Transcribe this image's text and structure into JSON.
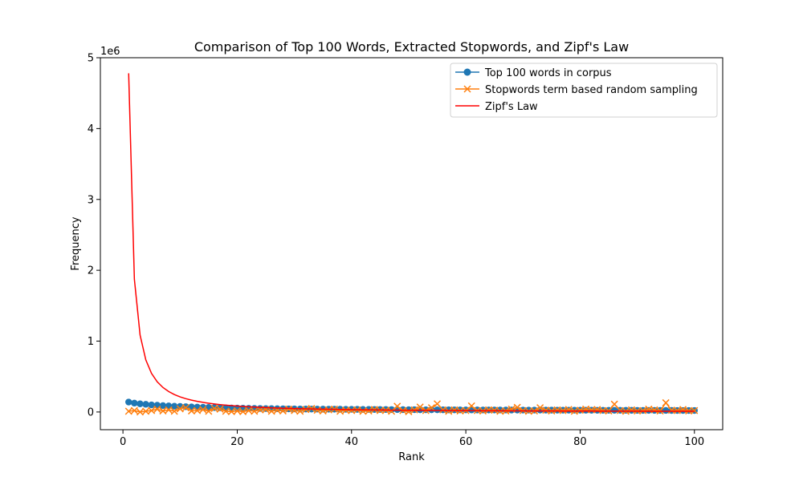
{
  "chart_data": {
    "type": "line",
    "title": "Comparison of Top 100 Words, Extracted Stopwords, and Zipf's Law",
    "xlabel": "Rank",
    "ylabel": "Frequency",
    "y_offset_label": "1e6",
    "xlim": [
      -3.95,
      104.95
    ],
    "ylim": [
      -250000,
      5000000
    ],
    "x_ticks": [
      0,
      20,
      40,
      60,
      80,
      100
    ],
    "x_tick_labels": [
      "0",
      "20",
      "40",
      "60",
      "80",
      "100"
    ],
    "y_ticks": [
      0,
      1000000,
      2000000,
      3000000,
      4000000,
      5000000
    ],
    "y_tick_labels": [
      "0",
      "1",
      "2",
      "3",
      "4",
      "5"
    ],
    "grid": false,
    "legend_position": "upper right",
    "series": [
      {
        "name": "Top 100 words in corpus",
        "color": "#1f77b4",
        "marker": "circle",
        "x": [
          1,
          2,
          3,
          4,
          5,
          6,
          7,
          8,
          9,
          10,
          11,
          12,
          13,
          14,
          15,
          16,
          17,
          18,
          19,
          20,
          21,
          22,
          23,
          24,
          25,
          26,
          27,
          28,
          29,
          30,
          31,
          32,
          33,
          34,
          35,
          36,
          37,
          38,
          39,
          40,
          41,
          42,
          43,
          44,
          45,
          46,
          47,
          48,
          49,
          50,
          51,
          52,
          53,
          54,
          55,
          56,
          57,
          58,
          59,
          60,
          61,
          62,
          63,
          64,
          65,
          66,
          67,
          68,
          69,
          70,
          71,
          72,
          73,
          74,
          75,
          76,
          77,
          78,
          79,
          80,
          81,
          82,
          83,
          84,
          85,
          86,
          87,
          88,
          89,
          90,
          91,
          92,
          93,
          94,
          95,
          96,
          97,
          98,
          99,
          100
        ],
        "values": [
          140000,
          125000,
          115000,
          108000,
          100000,
          95000,
          90000,
          86000,
          82000,
          78000,
          75000,
          72000,
          69000,
          66000,
          64000,
          62000,
          60000,
          58000,
          56000,
          55000,
          53000,
          52000,
          50000,
          49000,
          48000,
          47000,
          46000,
          45000,
          44000,
          43000,
          42000,
          41500,
          41000,
          40500,
          40000,
          39500,
          39000,
          38500,
          38000,
          37500,
          37000,
          36500,
          36000,
          35500,
          35000,
          34500,
          34000,
          33500,
          33000,
          32500,
          32000,
          31500,
          31000,
          30800,
          30500,
          30200,
          30000,
          29700,
          29400,
          29100,
          28800,
          28500,
          28200,
          28000,
          27800,
          27600,
          27400,
          27200,
          27000,
          26800,
          26600,
          26400,
          26200,
          26000,
          25800,
          25600,
          25400,
          25200,
          25000,
          24800,
          24600,
          24400,
          24200,
          24000,
          23800,
          23600,
          23400,
          23200,
          23000,
          22800,
          22600,
          22400,
          22200,
          22000,
          21800,
          21600,
          21400,
          21200,
          21000,
          20800
        ]
      },
      {
        "name": "Stopwords term based random sampling",
        "color": "#ff7f0e",
        "marker": "x",
        "x": [
          1,
          2,
          3,
          4,
          5,
          6,
          7,
          8,
          9,
          10,
          11,
          12,
          13,
          14,
          15,
          16,
          17,
          18,
          19,
          20,
          21,
          22,
          23,
          24,
          25,
          26,
          27,
          28,
          29,
          30,
          31,
          32,
          33,
          34,
          35,
          36,
          37,
          38,
          39,
          40,
          41,
          42,
          43,
          44,
          45,
          46,
          47,
          48,
          49,
          50,
          51,
          52,
          53,
          54,
          55,
          56,
          57,
          58,
          59,
          60,
          61,
          62,
          63,
          64,
          65,
          66,
          67,
          68,
          69,
          70,
          71,
          72,
          73,
          74,
          75,
          76,
          77,
          78,
          79,
          80,
          81,
          82,
          83,
          84,
          85,
          86,
          87,
          88,
          89,
          90,
          91,
          92,
          93,
          94,
          95,
          96,
          97,
          98,
          99,
          100
        ],
        "values": [
          10000,
          20000,
          0,
          10000,
          20000,
          40000,
          15000,
          30000,
          10000,
          45000,
          60000,
          15000,
          20000,
          35000,
          10000,
          50000,
          40000,
          10000,
          5000,
          15000,
          5000,
          20000,
          10000,
          30000,
          35000,
          10000,
          25000,
          15000,
          40000,
          20000,
          10000,
          35000,
          50000,
          25000,
          15000,
          30000,
          40000,
          10000,
          25000,
          20000,
          30000,
          10000,
          15000,
          35000,
          20000,
          25000,
          10000,
          80000,
          20000,
          5000,
          30000,
          70000,
          20000,
          60000,
          115000,
          30000,
          10000,
          30000,
          15000,
          20000,
          85000,
          20000,
          15000,
          30000,
          25000,
          10000,
          15000,
          40000,
          65000,
          20000,
          10000,
          15000,
          60000,
          25000,
          15000,
          30000,
          20000,
          35000,
          10000,
          25000,
          40000,
          30000,
          35000,
          20000,
          15000,
          110000,
          20000,
          10000,
          30000,
          15000,
          20000,
          40000,
          30000,
          15000,
          130000,
          25000,
          20000,
          35000,
          15000,
          20000
        ]
      },
      {
        "name": "Zipf's Law",
        "color": "#ff0000",
        "marker": "none",
        "x_start": 1,
        "x_end": 100,
        "count": 100,
        "formula": "C / rank^s",
        "C": 4780000,
        "s": 1.35
      }
    ]
  }
}
